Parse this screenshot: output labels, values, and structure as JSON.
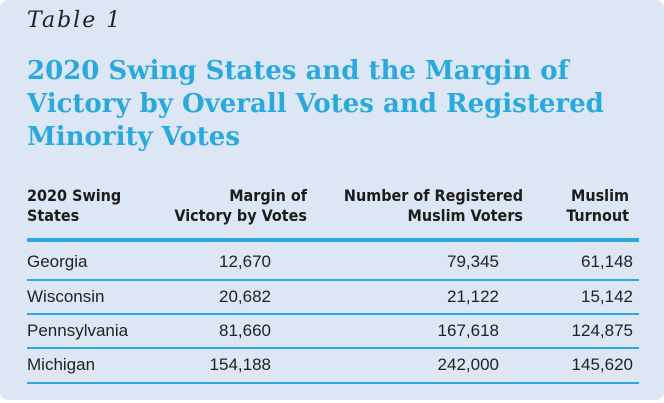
{
  "table_label": "Table 1",
  "title": "2020 Swing States and the Margin of Victory by Overall Votes and Registered Minority Votes",
  "columns": [
    {
      "line1": "2020 Swing",
      "line2": "States"
    },
    {
      "line1": "Margin of",
      "line2": "Victory by Votes"
    },
    {
      "line1": "Number of Registered",
      "line2": "Muslim Voters"
    },
    {
      "line1": "Muslim",
      "line2": "Turnout"
    }
  ],
  "rows": [
    {
      "state": "Georgia",
      "margin": "12,670",
      "registered": "79,345",
      "turnout": "61,148"
    },
    {
      "state": "Wisconsin",
      "margin": "20,682",
      "registered": "21,122",
      "turnout": "15,142"
    },
    {
      "state": "Pennsylvania",
      "margin": "81,660",
      "registered": "167,618",
      "turnout": "124,875"
    },
    {
      "state": "Michigan",
      "margin": "154,188",
      "registered": "242,000",
      "turnout": "145,620"
    }
  ],
  "colors": {
    "panel_background": "#dde6f4",
    "accent": "#2aa9dd",
    "text": "#222222"
  }
}
